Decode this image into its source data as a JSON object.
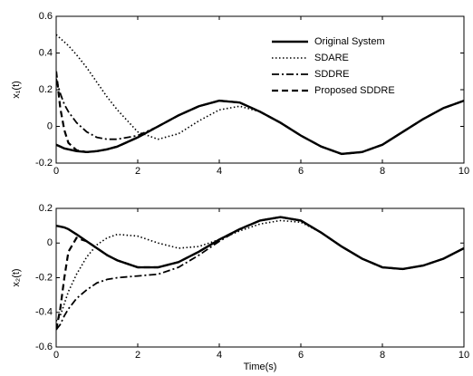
{
  "chart_data": [
    {
      "type": "line",
      "ylabel": "x₁(t)",
      "x": [
        0,
        0.1,
        0.2,
        0.3,
        0.5,
        0.75,
        1,
        1.25,
        1.5,
        2,
        2.5,
        3,
        3.5,
        4,
        4.5,
        5,
        5.5,
        6,
        6.5,
        7,
        7.5,
        8,
        8.5,
        9,
        9.5,
        10
      ],
      "series": [
        {
          "name": "Original System",
          "color": "#000000",
          "style": "solid",
          "values": [
            -0.1,
            -0.11,
            -0.12,
            -0.125,
            -0.135,
            -0.14,
            -0.135,
            -0.125,
            -0.11,
            -0.06,
            0.0,
            0.06,
            0.11,
            0.14,
            0.13,
            0.08,
            0.02,
            -0.05,
            -0.11,
            -0.15,
            -0.14,
            -0.1,
            -0.03,
            0.04,
            0.1,
            0.14
          ]
        },
        {
          "name": "SDARE",
          "color": "#000000",
          "style": "dotted",
          "values": [
            0.5,
            0.48,
            0.46,
            0.44,
            0.39,
            0.32,
            0.24,
            0.16,
            0.09,
            -0.03,
            -0.07,
            -0.04,
            0.03,
            0.09,
            0.11,
            0.08,
            0.02,
            -0.05,
            -0.11,
            -0.15,
            -0.14,
            -0.1,
            -0.03,
            0.04,
            0.1,
            0.14
          ]
        },
        {
          "name": "SDDRE",
          "color": "#000000",
          "style": "dashdot",
          "values": [
            0.26,
            0.18,
            0.12,
            0.08,
            0.02,
            -0.03,
            -0.06,
            -0.07,
            -0.07,
            -0.05,
            0.0,
            0.06,
            0.11,
            0.14,
            0.13,
            0.08,
            0.02,
            -0.05,
            -0.11,
            -0.15,
            -0.14,
            -0.1,
            -0.03,
            0.04,
            0.1,
            0.14
          ]
        },
        {
          "name": "Proposed SDDRE",
          "color": "#000000",
          "style": "dashed",
          "values": [
            0.3,
            0.1,
            -0.02,
            -0.09,
            -0.13,
            -0.14,
            -0.135,
            -0.125,
            -0.11,
            -0.06,
            0.0,
            0.06,
            0.11,
            0.14,
            0.13,
            0.08,
            0.02,
            -0.05,
            -0.11,
            -0.15,
            -0.14,
            -0.1,
            -0.03,
            0.04,
            0.1,
            0.14
          ]
        }
      ],
      "xlim": [
        0,
        10
      ],
      "xticks": [
        0,
        2,
        4,
        6,
        8,
        10
      ],
      "ylim": [
        -0.2,
        0.6
      ],
      "yticks": [
        -0.2,
        0,
        0.2,
        0.4,
        0.6
      ],
      "legend": "upper right"
    },
    {
      "type": "line",
      "xlabel": "Time(s)",
      "ylabel": "x₂(t)",
      "x": [
        0,
        0.1,
        0.2,
        0.3,
        0.5,
        0.75,
        1,
        1.25,
        1.5,
        2,
        2.5,
        3,
        3.5,
        4,
        4.5,
        5,
        5.5,
        6,
        6.5,
        7,
        7.5,
        8,
        8.5,
        9,
        9.5,
        10
      ],
      "series": [
        {
          "color": "#000000",
          "style": "solid",
          "values": [
            0.1,
            0.095,
            0.09,
            0.08,
            0.05,
            0.01,
            -0.03,
            -0.07,
            -0.1,
            -0.14,
            -0.14,
            -0.11,
            -0.05,
            0.02,
            0.08,
            0.13,
            0.15,
            0.13,
            0.06,
            -0.02,
            -0.09,
            -0.14,
            -0.15,
            -0.13,
            -0.09,
            -0.03
          ]
        },
        {
          "color": "#000000",
          "style": "dotted",
          "values": [
            -0.45,
            -0.42,
            -0.35,
            -0.28,
            -0.18,
            -0.08,
            -0.01,
            0.03,
            0.05,
            0.04,
            0.0,
            -0.03,
            -0.02,
            0.02,
            0.07,
            0.11,
            0.13,
            0.12,
            0.06,
            -0.02,
            -0.09,
            -0.14,
            -0.15,
            -0.13,
            -0.09,
            -0.03
          ]
        },
        {
          "color": "#000000",
          "style": "dashdot",
          "values": [
            -0.5,
            -0.47,
            -0.42,
            -0.38,
            -0.32,
            -0.27,
            -0.23,
            -0.21,
            -0.2,
            -0.19,
            -0.18,
            -0.14,
            -0.07,
            0.01,
            0.08,
            0.13,
            0.15,
            0.13,
            0.06,
            -0.02,
            -0.09,
            -0.14,
            -0.15,
            -0.13,
            -0.09,
            -0.03
          ]
        },
        {
          "color": "#000000",
          "style": "dashed",
          "values": [
            -0.5,
            -0.38,
            -0.2,
            -0.05,
            0.03,
            0.01,
            -0.03,
            -0.07,
            -0.1,
            -0.14,
            -0.14,
            -0.11,
            -0.05,
            0.02,
            0.08,
            0.13,
            0.15,
            0.13,
            0.06,
            -0.02,
            -0.09,
            -0.14,
            -0.15,
            -0.13,
            -0.09,
            -0.03
          ]
        }
      ],
      "xlim": [
        0,
        10
      ],
      "xticks": [
        0,
        2,
        4,
        6,
        8,
        10
      ],
      "ylim": [
        -0.6,
        0.2
      ],
      "yticks": [
        -0.6,
        -0.4,
        -0.2,
        0,
        0.2
      ]
    }
  ]
}
